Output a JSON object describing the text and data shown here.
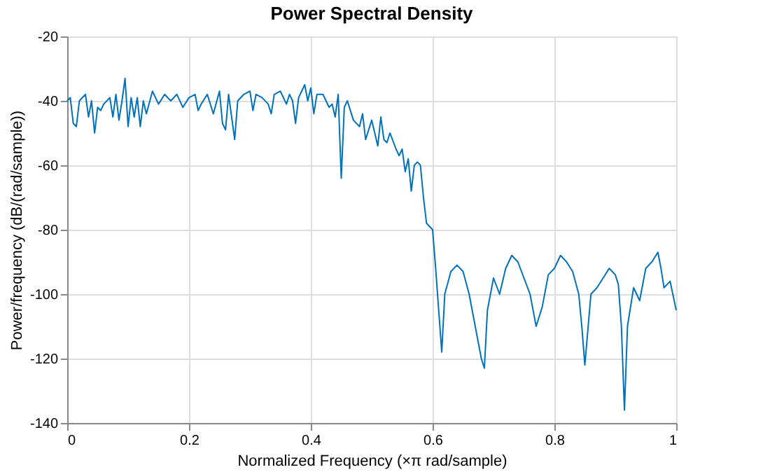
{
  "chart_data": {
    "type": "line",
    "title": "Power Spectral Density",
    "xlabel": "Normalized  Frequency    (×π  rad/sample)",
    "ylabel": "Power/frequency (dB/(rad/sample))",
    "x": [
      0,
      0.005,
      0.01,
      0.015,
      0.02,
      0.03,
      0.035,
      0.04,
      0.045,
      0.05,
      0.055,
      0.06,
      0.07,
      0.075,
      0.08,
      0.085,
      0.09,
      0.095,
      0.1,
      0.105,
      0.11,
      0.115,
      0.12,
      0.125,
      0.13,
      0.14,
      0.15,
      0.16,
      0.17,
      0.18,
      0.19,
      0.2,
      0.21,
      0.215,
      0.22,
      0.23,
      0.24,
      0.25,
      0.255,
      0.26,
      0.265,
      0.27,
      0.275,
      0.28,
      0.29,
      0.3,
      0.305,
      0.31,
      0.32,
      0.33,
      0.335,
      0.34,
      0.35,
      0.36,
      0.365,
      0.37,
      0.375,
      0.38,
      0.39,
      0.395,
      0.4,
      0.405,
      0.41,
      0.42,
      0.43,
      0.435,
      0.44,
      0.445,
      0.45,
      0.455,
      0.46,
      0.47,
      0.48,
      0.485,
      0.49,
      0.5,
      0.505,
      0.51,
      0.515,
      0.52,
      0.525,
      0.53,
      0.54,
      0.545,
      0.55,
      0.555,
      0.56,
      0.565,
      0.57,
      0.575,
      0.58,
      0.585,
      0.59,
      0.6,
      0.605,
      0.61,
      0.615,
      0.62,
      0.63,
      0.64,
      0.65,
      0.66,
      0.67,
      0.68,
      0.685,
      0.69,
      0.7,
      0.71,
      0.72,
      0.73,
      0.74,
      0.75,
      0.76,
      0.77,
      0.78,
      0.79,
      0.8,
      0.81,
      0.82,
      0.83,
      0.84,
      0.845,
      0.85,
      0.86,
      0.87,
      0.88,
      0.89,
      0.9,
      0.905,
      0.91,
      0.915,
      0.92,
      0.93,
      0.94,
      0.95,
      0.96,
      0.97,
      0.975,
      0.98,
      0.99,
      1.0
    ],
    "series": [
      {
        "color": "#0072bd",
        "values": [
          -40,
          -39,
          -47,
          -48,
          -40,
          -38,
          -45,
          -40,
          -50,
          -42,
          -43,
          -41,
          -39,
          -45,
          -38,
          -46,
          -40,
          -33,
          -48,
          -39,
          -45,
          -39,
          -48,
          -40,
          -44,
          -37,
          -41,
          -38,
          -40,
          -38,
          -42,
          -39,
          -38,
          -43,
          -41,
          -38,
          -44,
          -37,
          -47,
          -49,
          -38,
          -45,
          -52,
          -40,
          -38,
          -37,
          -43,
          -38,
          -39,
          -41,
          -44,
          -38,
          -37,
          -41,
          -38,
          -40,
          -47,
          -39,
          -35,
          -40,
          -36,
          -44,
          -38,
          -38,
          -42,
          -41,
          -45,
          -38,
          -64,
          -42,
          -40,
          -46,
          -48,
          -44,
          -52,
          -46,
          -50,
          -54,
          -45,
          -52,
          -53,
          -50,
          -55,
          -57,
          -55,
          -62,
          -58,
          -68,
          -60,
          -59,
          -60,
          -70,
          -78,
          -80,
          -92,
          -105,
          -118,
          -100,
          -93,
          -91,
          -93,
          -100,
          -110,
          -120,
          -123,
          -105,
          -95,
          -100,
          -92,
          -88,
          -90,
          -95,
          -100,
          -110,
          -104,
          -94,
          -92,
          -88,
          -90,
          -93,
          -100,
          -110,
          -122,
          -100,
          -98,
          -95,
          -92,
          -94,
          -97,
          -110,
          -136,
          -110,
          -98,
          -102,
          -92,
          -90,
          -87,
          -92,
          -98,
          -96,
          -105
        ]
      }
    ],
    "xlim": [
      0,
      1
    ],
    "ylim": [
      -140,
      -20
    ],
    "xticks": [
      {
        "value": 0,
        "label": "0"
      },
      0.2,
      0.4,
      0.6,
      0.8,
      {
        "value": 1,
        "label": "1"
      }
    ],
    "yticks": [
      -140,
      -120,
      -100,
      -80,
      -60,
      -40,
      -20
    ],
    "grid": true,
    "line_style": "solid",
    "marker": "none"
  }
}
